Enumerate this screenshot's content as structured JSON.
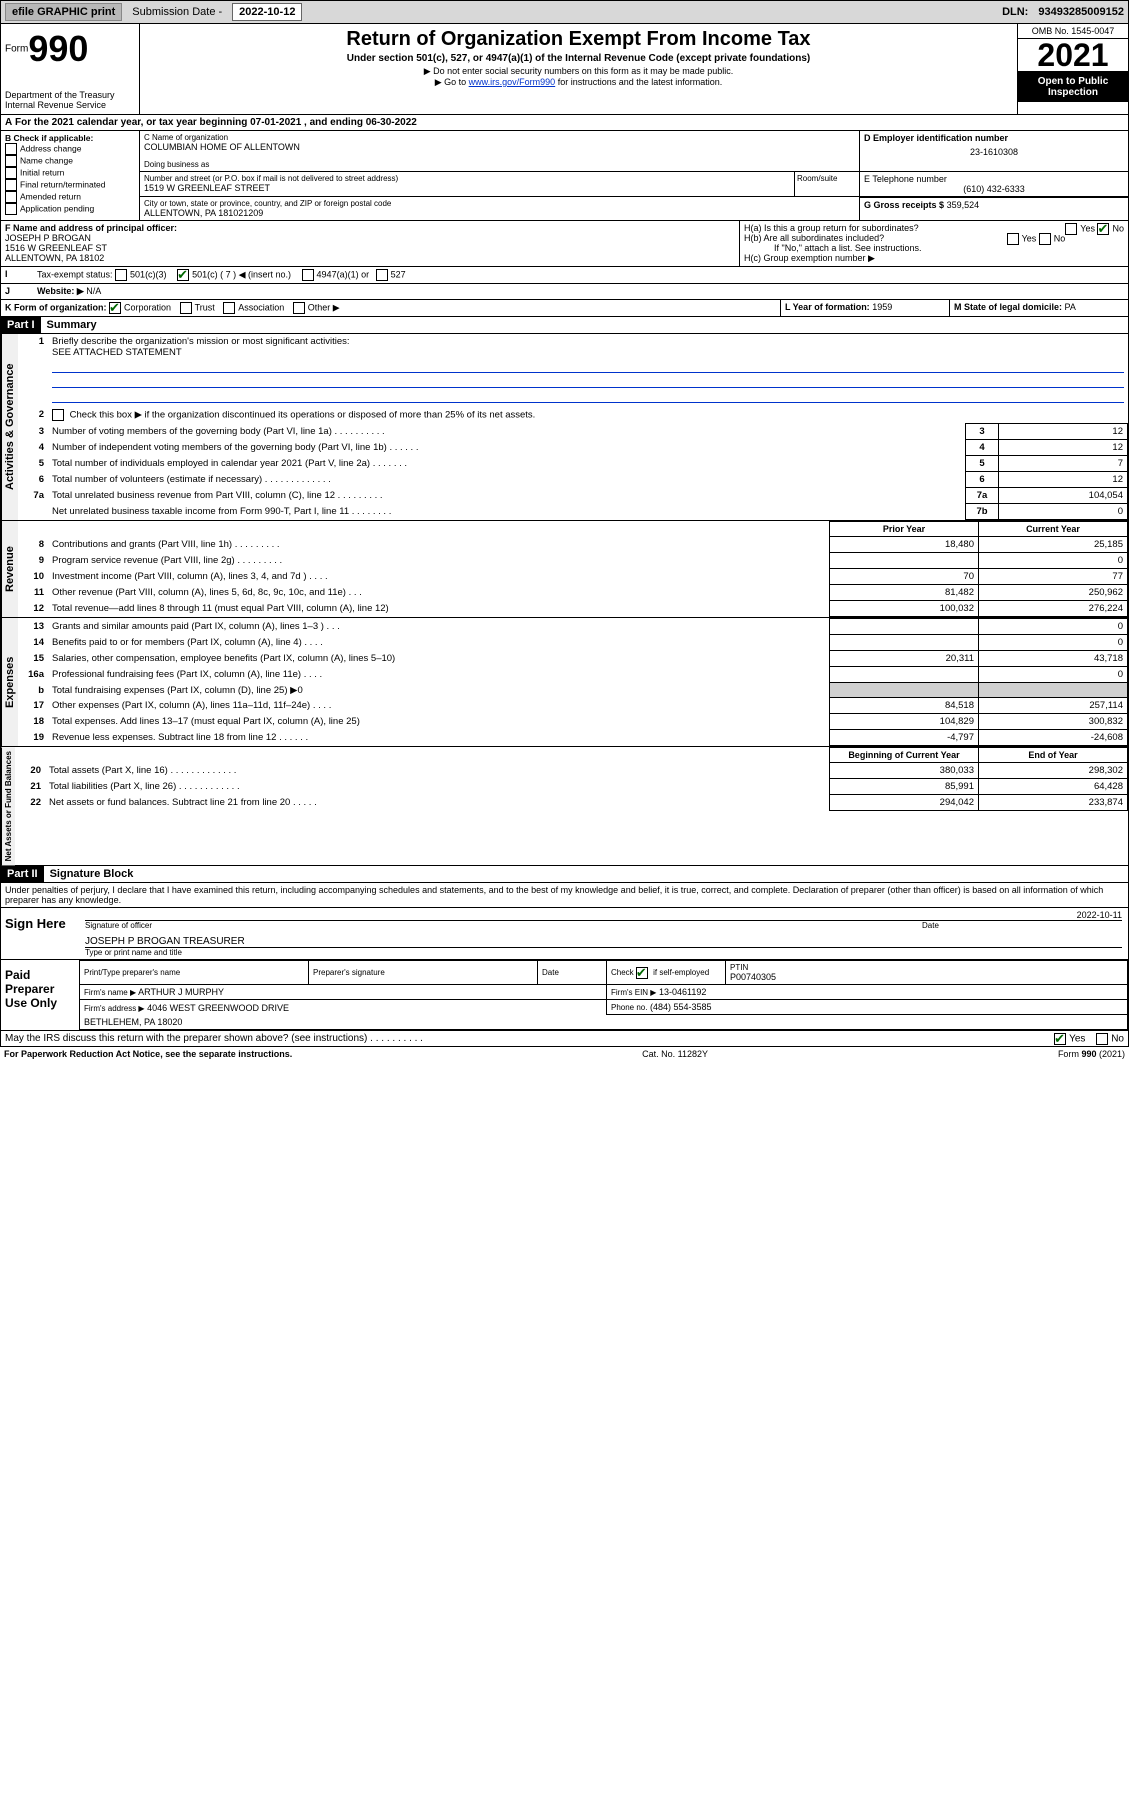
{
  "topbar": {
    "efile": "efile GRAPHIC print",
    "subdate_label": "Submission Date -",
    "subdate": "2022-10-12",
    "dln_label": "DLN:",
    "dln": "93493285009152"
  },
  "header": {
    "form_label": "Form",
    "form_num": "990",
    "dept": "Department of the Treasury",
    "irs": "Internal Revenue Service",
    "title": "Return of Organization Exempt From Income Tax",
    "subtitle": "Under section 501(c), 527, or 4947(a)(1) of the Internal Revenue Code (except private foundations)",
    "note1": "▶ Do not enter social security numbers on this form as it may be made public.",
    "note2_pre": "▶ Go to ",
    "note2_link": "www.irs.gov/Form990",
    "note2_post": " for instructions and the latest information.",
    "omb": "OMB No. 1545-0047",
    "year": "2021",
    "inspect": "Open to Public Inspection"
  },
  "lineA": "For the 2021 calendar year, or tax year beginning 07-01-2021   , and ending 06-30-2022",
  "boxB": {
    "label": "B Check if applicable:",
    "opts": [
      "Address change",
      "Name change",
      "Initial return",
      "Final return/terminated",
      "Amended return",
      "Application pending"
    ]
  },
  "boxC": {
    "name_label": "C Name of organization",
    "name": "COLUMBIAN HOME OF ALLENTOWN",
    "dba_label": "Doing business as",
    "addr_label": "Number and street (or P.O. box if mail is not delivered to street address)",
    "room_label": "Room/suite",
    "addr": "1519 W GREENLEAF STREET",
    "city_label": "City or town, state or province, country, and ZIP or foreign postal code",
    "city": "ALLENTOWN, PA  181021209"
  },
  "boxD": {
    "label": "D Employer identification number",
    "value": "23-1610308"
  },
  "boxE": {
    "label": "E Telephone number",
    "value": "(610) 432-6333"
  },
  "boxG": {
    "label": "G Gross receipts $",
    "value": "359,524"
  },
  "boxF": {
    "label": "F  Name and address of principal officer:",
    "name": "JOSEPH P BROGAN",
    "addr1": "1516 W GREENLEAF ST",
    "addr2": "ALLENTOWN, PA  18102"
  },
  "boxH": {
    "a_label": "H(a)  Is this a group return for subordinates?",
    "a_yes": "Yes",
    "a_no": "No",
    "b_label": "H(b)  Are all subordinates included?",
    "b_note": "If \"No,\" attach a list. See instructions.",
    "c_label": "H(c)  Group exemption number ▶"
  },
  "boxI": {
    "label": "Tax-exempt status:",
    "o1": "501(c)(3)",
    "o2": "501(c) ( 7 ) ◀ (insert no.)",
    "o3": "4947(a)(1) or",
    "o4": "527"
  },
  "boxJ": {
    "label": "Website: ▶",
    "value": "N/A"
  },
  "boxK": {
    "label": "K Form of organization:",
    "opts": [
      "Corporation",
      "Trust",
      "Association",
      "Other ▶"
    ]
  },
  "boxL": {
    "label": "L Year of formation:",
    "value": "1959"
  },
  "boxM": {
    "label": "M State of legal domicile:",
    "value": "PA"
  },
  "part1": {
    "header": "Part I",
    "title": "Summary",
    "q1": "Briefly describe the organization's mission or most significant activities:",
    "q1val": "SEE ATTACHED STATEMENT",
    "q2": "Check this box ▶      if the organization discontinued its operations or disposed of more than 25% of its net assets.",
    "rows_single": [
      {
        "n": "3",
        "t": "Number of voting members of the governing body (Part VI, line 1a)   .    .    .    .    .    .    .    .    .    .",
        "box": "3",
        "v": "12"
      },
      {
        "n": "4",
        "t": "Number of independent voting members of the governing body (Part VI, line 1b)   .    .    .    .    .    .",
        "box": "4",
        "v": "12"
      },
      {
        "n": "5",
        "t": "Total number of individuals employed in calendar year 2021 (Part V, line 2a)   .    .    .    .    .    .    .",
        "box": "5",
        "v": "7"
      },
      {
        "n": "6",
        "t": "Total number of volunteers (estimate if necessary)   .    .    .    .    .    .    .    .    .    .    .    .    .",
        "box": "6",
        "v": "12"
      },
      {
        "n": "7a",
        "t": "Total unrelated business revenue from Part VIII, column (C), line 12   .    .    .    .    .    .    .    .    .",
        "box": "7a",
        "v": "104,054"
      },
      {
        "n": "",
        "t": "Net unrelated business taxable income from Form 990-T, Part I, line 11   .    .    .    .    .    .    .    .",
        "box": "7b",
        "v": "0"
      }
    ],
    "col_prior": "Prior Year",
    "col_current": "Current Year",
    "revenue": [
      {
        "n": "8",
        "t": "Contributions and grants (Part VIII, line 1h)   .    .    .    .    .    .    .    .    .",
        "p": "18,480",
        "c": "25,185"
      },
      {
        "n": "9",
        "t": "Program service revenue (Part VIII, line 2g)   .    .    .    .    .    .    .    .    .",
        "p": "",
        "c": "0"
      },
      {
        "n": "10",
        "t": "Investment income (Part VIII, column (A), lines 3, 4, and 7d )   .    .    .    .",
        "p": "70",
        "c": "77"
      },
      {
        "n": "11",
        "t": "Other revenue (Part VIII, column (A), lines 5, 6d, 8c, 9c, 10c, and 11e)   .    .    .",
        "p": "81,482",
        "c": "250,962"
      },
      {
        "n": "12",
        "t": "Total revenue—add lines 8 through 11 (must equal Part VIII, column (A), line 12)",
        "p": "100,032",
        "c": "276,224"
      }
    ],
    "expenses": [
      {
        "n": "13",
        "t": "Grants and similar amounts paid (Part IX, column (A), lines 1–3 )   .    .    .",
        "p": "",
        "c": "0"
      },
      {
        "n": "14",
        "t": "Benefits paid to or for members (Part IX, column (A), line 4)   .    .    .    .",
        "p": "",
        "c": "0"
      },
      {
        "n": "15",
        "t": "Salaries, other compensation, employee benefits (Part IX, column (A), lines 5–10)",
        "p": "20,311",
        "c": "43,718"
      },
      {
        "n": "16a",
        "t": "Professional fundraising fees (Part IX, column (A), line 11e)   .    .    .    .",
        "p": "",
        "c": "0"
      },
      {
        "n": "b",
        "t": "Total fundraising expenses (Part IX, column (D), line 25) ▶0",
        "p": "SHADE",
        "c": "SHADE"
      },
      {
        "n": "17",
        "t": "Other expenses (Part IX, column (A), lines 11a–11d, 11f–24e)   .    .    .    .",
        "p": "84,518",
        "c": "257,114"
      },
      {
        "n": "18",
        "t": "Total expenses. Add lines 13–17 (must equal Part IX, column (A), line 25)",
        "p": "104,829",
        "c": "300,832"
      },
      {
        "n": "19",
        "t": "Revenue less expenses. Subtract line 18 from line 12   .    .    .    .    .    .",
        "p": "-4,797",
        "c": "-24,608"
      }
    ],
    "col_begin": "Beginning of Current Year",
    "col_end": "End of Year",
    "assets": [
      {
        "n": "20",
        "t": "Total assets (Part X, line 16)   .    .    .    .    .    .    .    .    .    .    .    .    .",
        "p": "380,033",
        "c": "298,302"
      },
      {
        "n": "21",
        "t": "Total liabilities (Part X, line 26)   .    .    .    .    .    .    .    .    .    .    .    .",
        "p": "85,991",
        "c": "64,428"
      },
      {
        "n": "22",
        "t": "Net assets or fund balances. Subtract line 21 from line 20   .    .    .    .    .",
        "p": "294,042",
        "c": "233,874"
      }
    ],
    "vlabels": {
      "gov": "Activities & Governance",
      "rev": "Revenue",
      "exp": "Expenses",
      "net": "Net Assets or Fund Balances"
    }
  },
  "part2": {
    "header": "Part II",
    "title": "Signature Block",
    "decl": "Under penalties of perjury, I declare that I have examined this return, including accompanying schedules and statements, and to the best of my knowledge and belief, it is true, correct, and complete. Declaration of preparer (other than officer) is based on all information of which preparer has any knowledge.",
    "sign_label": "Sign Here",
    "sig_officer": "Signature of officer",
    "sig_date_label": "Date",
    "sig_date": "2022-10-11",
    "sig_name": "JOSEPH P BROGAN  TREASURER",
    "sig_name_label": "Type or print name and title",
    "paid_label": "Paid Preparer Use Only",
    "prep_name_label": "Print/Type preparer's name",
    "prep_sig_label": "Preparer's signature",
    "date_label": "Date",
    "check_label": "Check        if self-employed",
    "ptin_label": "PTIN",
    "ptin": "P00740305",
    "firm_name_label": "Firm's name  ▶",
    "firm_name": "ARTHUR J MURPHY",
    "firm_ein_label": "Firm's EIN ▶",
    "firm_ein": "13-0461192",
    "firm_addr_label": "Firm's address ▶",
    "firm_addr1": "4046 WEST GREENWOOD DRIVE",
    "firm_addr2": "BETHLEHEM, PA  18020",
    "phone_label": "Phone no.",
    "phone": "(484) 554-3585",
    "discuss": "May the IRS discuss this return with the preparer shown above? (see instructions)   .     .     .     .     .     .     .     .     .     .",
    "yes": "Yes",
    "no": "No"
  },
  "footer": {
    "pra": "For Paperwork Reduction Act Notice, see the separate instructions.",
    "cat": "Cat. No. 11282Y",
    "form": "Form 990 (2021)"
  }
}
